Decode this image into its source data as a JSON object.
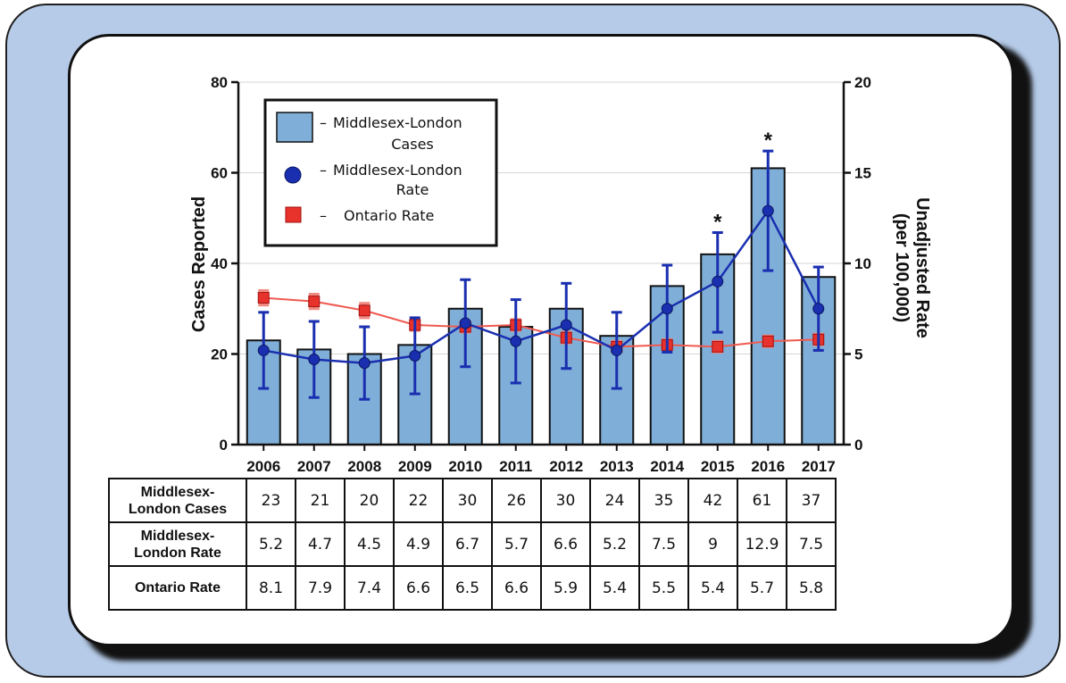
{
  "chart_data": {
    "type": "bar",
    "categories": [
      "2006",
      "2007",
      "2008",
      "2009",
      "2010",
      "2011",
      "2012",
      "2013",
      "2014",
      "2015",
      "2016",
      "2017"
    ],
    "series": [
      {
        "name": "Middlesex-London Cases",
        "type": "bar",
        "axis": "left",
        "color": "#7fafd8",
        "values": [
          23,
          21,
          20,
          22,
          30,
          26,
          30,
          24,
          35,
          42,
          61,
          37
        ]
      },
      {
        "name": "Middlesex-London Rate",
        "type": "line",
        "axis": "right",
        "color": "#1a2fb0",
        "values": [
          5.2,
          4.7,
          4.5,
          4.9,
          6.7,
          5.7,
          6.6,
          5.2,
          7.5,
          9,
          12.9,
          7.5
        ],
        "error_low": [
          3.1,
          2.6,
          2.5,
          2.8,
          4.3,
          3.4,
          4.2,
          3.1,
          5.1,
          6.2,
          9.6,
          5.2
        ],
        "error_high": [
          7.3,
          6.8,
          6.5,
          7.0,
          9.1,
          8.0,
          8.9,
          7.3,
          9.9,
          11.7,
          16.2,
          9.8
        ]
      },
      {
        "name": "Ontario Rate",
        "type": "line",
        "axis": "right",
        "color": "#e8322c",
        "values": [
          8.1,
          7.9,
          7.4,
          6.6,
          6.5,
          6.6,
          5.9,
          5.4,
          5.5,
          5.4,
          5.7,
          5.8
        ],
        "error_low": [
          7.7,
          7.5,
          7.0,
          6.3,
          6.2,
          6.3,
          5.6,
          5.1,
          5.2,
          5.1,
          5.4,
          5.5
        ],
        "error_high": [
          8.5,
          8.3,
          7.8,
          6.9,
          6.8,
          6.9,
          6.2,
          5.7,
          5.8,
          5.7,
          6.0,
          6.1
        ]
      }
    ],
    "ylabel": "Cases Reported",
    "ylabel_right": "Unadjusted Rate (per 100,000)",
    "ylabel_right_lines": [
      "Unadjusted Rate",
      "(per 100,000)"
    ],
    "ylim": [
      0,
      80
    ],
    "ylim_right": [
      0,
      20
    ],
    "yticks": [
      0,
      20,
      40,
      60,
      80
    ],
    "yticks_right": [
      0,
      5,
      10,
      15,
      20
    ],
    "annotations": [
      {
        "category": "2015",
        "text": "*"
      },
      {
        "category": "2016",
        "text": "*"
      }
    ],
    "grid": true,
    "legend_position": "top-left",
    "legend_entries": [
      {
        "lines": [
          "Middlesex-London",
          "Cases"
        ],
        "marker": "bar"
      },
      {
        "lines": [
          "Middlesex-London",
          "Rate"
        ],
        "marker": "circle"
      },
      {
        "lines": [
          "Ontario Rate"
        ],
        "marker": "square"
      }
    ],
    "legend_dash": "–",
    "table": {
      "rows": [
        {
          "header_lines": [
            "Middlesex-",
            "London Cases"
          ],
          "values": [
            "23",
            "21",
            "20",
            "22",
            "30",
            "26",
            "30",
            "24",
            "35",
            "42",
            "61",
            "37"
          ]
        },
        {
          "header_lines": [
            "Middlesex-",
            "London Rate"
          ],
          "values": [
            "5.2",
            "4.7",
            "4.5",
            "4.9",
            "6.7",
            "5.7",
            "6.6",
            "5.2",
            "7.5",
            "9",
            "12.9",
            "7.5"
          ]
        },
        {
          "header_lines": [
            "Ontario Rate"
          ],
          "values": [
            "8.1",
            "7.9",
            "7.4",
            "6.6",
            "6.5",
            "6.6",
            "5.9",
            "5.4",
            "5.5",
            "5.4",
            "5.7",
            "5.8"
          ]
        }
      ]
    }
  }
}
